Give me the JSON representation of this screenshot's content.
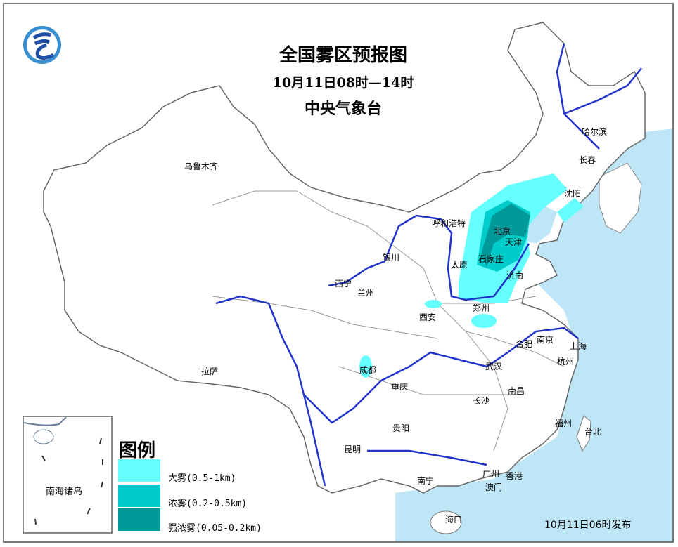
{
  "title": {
    "line1": "全国雾区预报图",
    "line2": "10月11日08时—14时",
    "line3": "中央气象台"
  },
  "legend": {
    "title": "图例",
    "items": [
      {
        "label": "大雾(0.5-1km)",
        "color": "#66ffff"
      },
      {
        "label": "浓雾(0.2-0.5km)",
        "color": "#00cccc"
      },
      {
        "label": "强浓雾(0.05-0.2km)",
        "color": "#009999"
      }
    ]
  },
  "colors": {
    "ocean": "#bfe6f7",
    "land": "#ffffff",
    "border": "#808080",
    "river": "#2233cc"
  },
  "cities": [
    "乌鲁木齐",
    "拉萨",
    "西宁",
    "兰州",
    "银川",
    "呼和浩特",
    "太原",
    "石家庄",
    "北京",
    "天津",
    "济南",
    "郑州",
    "西安",
    "成都",
    "重庆",
    "贵阳",
    "昆明",
    "南宁",
    "海口",
    "广州",
    "香港",
    "澳门",
    "长沙",
    "武汉",
    "合肥",
    "南京",
    "上海",
    "杭州",
    "南昌",
    "福州",
    "台北",
    "沈阳",
    "长春",
    "哈尔滨"
  ],
  "inset": {
    "label": "南海诸岛"
  },
  "issued": "10月11日06时发布"
}
